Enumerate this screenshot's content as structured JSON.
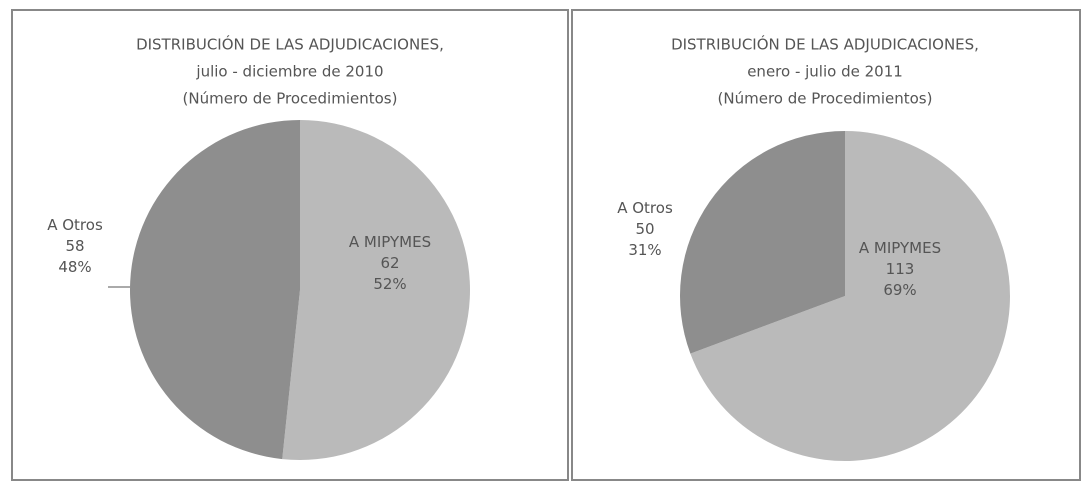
{
  "chart_data": [
    {
      "type": "pie",
      "title": [
        "DISTRIBUCIÓN DE LAS ADJUDICACIONES,",
        "julio - diciembre de 2010",
        "(Número de Procedimientos)"
      ],
      "categories": [
        "A MIPYMES",
        "A Otros"
      ],
      "values": [
        62,
        58
      ],
      "percent_labels": [
        "52%",
        "48%"
      ],
      "colors": [
        "#bababa",
        "#8e8e8e"
      ]
    },
    {
      "type": "pie",
      "title": [
        "DISTRIBUCIÓN DE LAS ADJUDICACIONES,",
        "enero - julio de 2011",
        "(Número de Procedimientos)"
      ],
      "categories": [
        "A MIPYMES",
        "A Otros"
      ],
      "values": [
        113,
        50
      ],
      "percent_labels": [
        "69%",
        "31%"
      ],
      "colors": [
        "#bababa",
        "#8e8e8e"
      ]
    }
  ]
}
